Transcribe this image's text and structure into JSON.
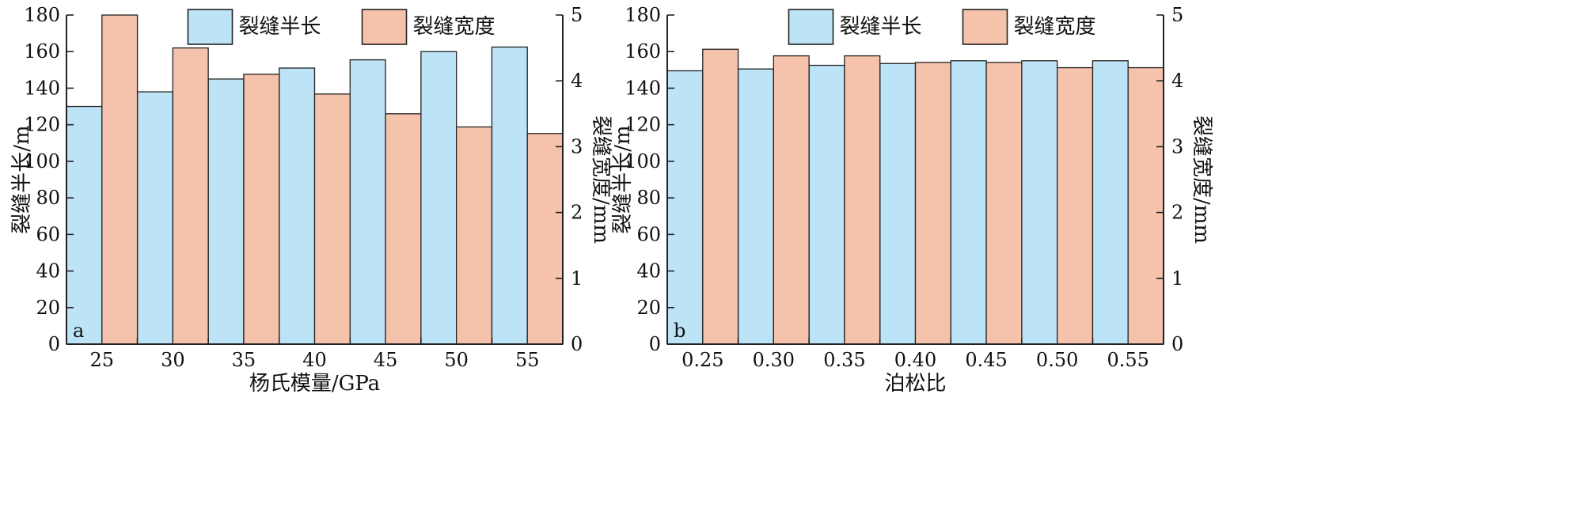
{
  "chart_data": [
    {
      "type": "bar",
      "panel_label": "a",
      "categories": [
        "25",
        "30",
        "35",
        "40",
        "45",
        "50",
        "55"
      ],
      "xlabel": "杨氏模量/GPa",
      "ylabel_left": "裂缝半长/m",
      "ylabel_right": "裂缝宽度/mm",
      "ylim_left": [
        0,
        180
      ],
      "ylim_right": [
        0,
        5
      ],
      "yticks_left": [
        "0",
        "20",
        "40",
        "60",
        "80",
        "100",
        "120",
        "140",
        "160",
        "180"
      ],
      "yticks_right": [
        "0",
        "1",
        "2",
        "3",
        "4",
        "5"
      ],
      "legend_position": "top-center",
      "grid": false,
      "series": [
        {
          "name": "裂缝半长",
          "axis": "left",
          "color": "#bde3f7",
          "values": [
            130,
            138,
            145,
            151,
            155.5,
            160,
            162.5
          ]
        },
        {
          "name": "裂缝宽度",
          "axis": "right",
          "color": "#f5c2ac",
          "values": [
            5.0,
            4.5,
            4.1,
            3.8,
            3.5,
            3.3,
            3.2
          ]
        }
      ]
    },
    {
      "type": "bar",
      "panel_label": "b",
      "categories": [
        "0.25",
        "0.30",
        "0.35",
        "0.40",
        "0.45",
        "0.50",
        "0.55"
      ],
      "xlabel": "泊松比",
      "ylabel_left": "裂缝半长/m",
      "ylabel_right": "裂缝宽度/mm",
      "ylim_left": [
        0,
        180
      ],
      "ylim_right": [
        0,
        5
      ],
      "yticks_left": [
        "0",
        "20",
        "40",
        "60",
        "80",
        "100",
        "120",
        "140",
        "160",
        "180"
      ],
      "yticks_right": [
        "0",
        "1",
        "2",
        "3",
        "4",
        "5"
      ],
      "legend_position": "top-center",
      "grid": false,
      "series": [
        {
          "name": "裂缝半长",
          "axis": "left",
          "color": "#bde3f7",
          "values": [
            149.5,
            150.5,
            152.5,
            153.5,
            155,
            155,
            155
          ]
        },
        {
          "name": "裂缝宽度",
          "axis": "right",
          "color": "#f5c2ac",
          "values": [
            4.48,
            4.38,
            4.38,
            4.28,
            4.28,
            4.2,
            4.2
          ]
        }
      ]
    }
  ]
}
